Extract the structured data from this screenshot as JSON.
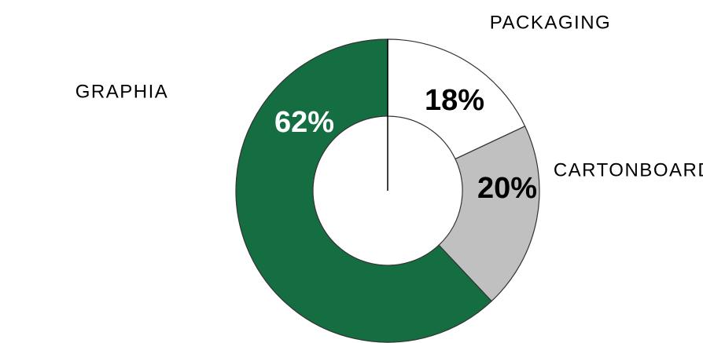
{
  "chart_data": {
    "type": "donut",
    "categories": [
      "PACKAGING",
      "GRAPHIA",
      "CARTONBOARD"
    ],
    "values": [
      18,
      20,
      62
    ],
    "value_labels": [
      "18%",
      "20%",
      "62%"
    ],
    "colors": [
      "#ffffff",
      "#c0c0c0",
      "#156e42"
    ],
    "value_label_colors": [
      "#000000",
      "#000000",
      "#ffffff"
    ]
  }
}
